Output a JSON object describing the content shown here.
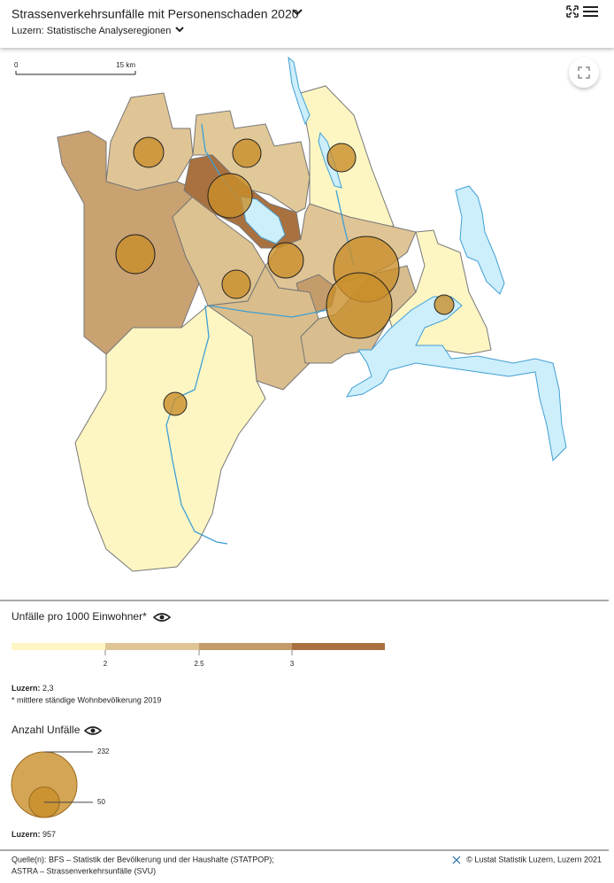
{
  "header": {
    "title": "Strassenverkehrsunfälle mit Personenschaden 2020",
    "subtitle": "Luzern: Statistische Analyseregionen"
  },
  "map": {
    "scale_start": "0",
    "scale_end": "15 km"
  },
  "legend_rate": {
    "title": "Unfälle pro 1000 Einwohner*",
    "ticks": [
      2,
      2.5,
      3
    ],
    "summary_label": "Luzern:",
    "summary_value": "2,3",
    "note": "* mittlere ständige Wohnbevölkerung 2019"
  },
  "legend_count": {
    "title": "Anzahl Unfälle",
    "values": [
      232,
      50
    ],
    "summary_label": "Luzern:",
    "summary_value": "957"
  },
  "footer": {
    "source_line1": "Quelle(n): BFS – Statistik der Bevölkerung und der Haushalte (STATPOP);",
    "source_line2": "ASTRA – Strassenverkehrsunfälle (SVU)",
    "credit": "© Lustat Statistik Luzern, Luzern 2021"
  }
}
